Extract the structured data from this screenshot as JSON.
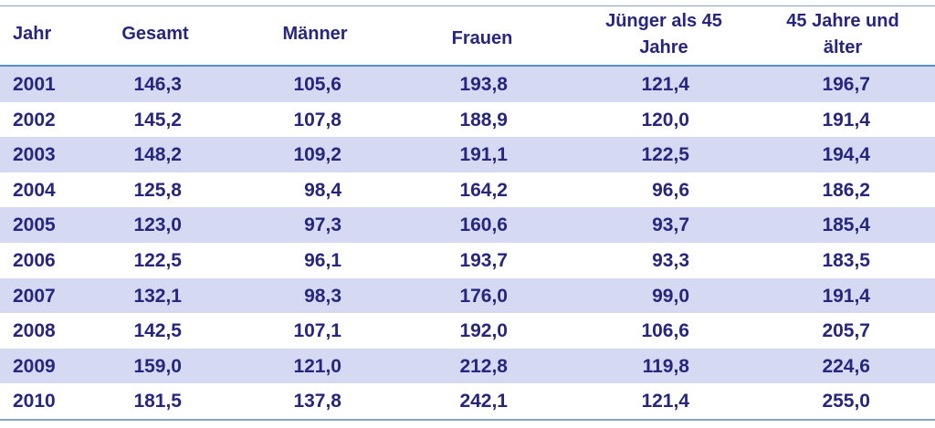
{
  "chart_data": {
    "type": "table",
    "columns": [
      "Jahr",
      "Gesamt",
      "Männer",
      "Frauen",
      "Jünger als 45 Jahre",
      "45 Jahre und älter"
    ],
    "header_lines": [
      [
        "Jahr"
      ],
      [
        "Gesamt"
      ],
      [
        "Männer"
      ],
      [
        "Frauen"
      ],
      [
        "Jünger als 45",
        "Jahre"
      ],
      [
        "45 Jahre und",
        "älter"
      ]
    ],
    "rows": [
      [
        "2001",
        "146,3",
        "105,6",
        "193,8",
        "121,4",
        "196,7"
      ],
      [
        "2002",
        "145,2",
        "107,8",
        "188,9",
        "120,0",
        "191,4"
      ],
      [
        "2003",
        "148,2",
        "109,2",
        "191,1",
        "122,5",
        "194,4"
      ],
      [
        "2004",
        "125,8",
        "98,4",
        "164,2",
        "96,6",
        "186,2"
      ],
      [
        "2005",
        "123,0",
        "97,3",
        "160,6",
        "93,7",
        "185,4"
      ],
      [
        "2006",
        "122,5",
        "96,1",
        "193,7",
        "93,3",
        "183,5"
      ],
      [
        "2007",
        "132,1",
        "98,3",
        "176,0",
        "99,0",
        "191,4"
      ],
      [
        "2008",
        "142,5",
        "107,1",
        "192,0",
        "106,6",
        "205,7"
      ],
      [
        "2009",
        "159,0",
        "121,0",
        "212,8",
        "119,8",
        "224,6"
      ],
      [
        "2010",
        "181,5",
        "137,8",
        "242,1",
        "121,4",
        "255,0"
      ]
    ]
  },
  "colors": {
    "text": "#26267e",
    "band": "#d6d9f2",
    "header_rule": "#4d8fd0",
    "outer_rule": "#8aa0c0"
  }
}
